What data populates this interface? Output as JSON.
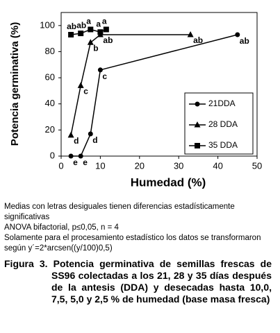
{
  "chart_data": {
    "type": "line",
    "xlabel": "Humedad (%)",
    "ylabel": "Potencia germinativa (%)",
    "xlim": [
      0,
      50
    ],
    "xticks": [
      0,
      10,
      20,
      30,
      40,
      50
    ],
    "ylim": [
      0,
      110
    ],
    "yticks": [
      0,
      20,
      40,
      60,
      80,
      100
    ],
    "series": [
      {
        "name": "21DDA",
        "color": "#000000",
        "marker": "circle",
        "x": [
          2.5,
          5,
          7.5,
          10,
          45
        ],
        "values": [
          0,
          0,
          17,
          66,
          93
        ],
        "point_labels": [
          "e",
          "e",
          "d",
          "c",
          "ab"
        ]
      },
      {
        "name": "28 DDA",
        "color": "#000000",
        "marker": "triangle",
        "x": [
          2.5,
          5,
          7.5,
          10,
          33
        ],
        "values": [
          16,
          54,
          87,
          93,
          93
        ],
        "point_labels": [
          "d",
          "c",
          "b",
          "ab",
          "ab"
        ]
      },
      {
        "name": "35 DDA",
        "color": "#000000",
        "marker": "square",
        "x": [
          2.5,
          5,
          7.5,
          10,
          11.5
        ],
        "values": [
          93,
          94,
          97,
          95,
          97
        ],
        "point_labels": [
          "ab",
          "ab",
          "a",
          "a",
          "a"
        ]
      }
    ]
  },
  "notes": [
    "Medias con letras desiguales tienen diferencias estadísticamente significativas",
    "ANOVA bifactorial, p≤0,05, n = 4",
    "Solamente para el procesamiento estadístico los datos se transformaron según y´=2*arcsen((y/100)0,5)"
  ],
  "caption": {
    "label": "Figura 3.",
    "text": "Potencia germinativa de semillas frescas de SS96 colectadas a los 21, 28 y 35 días después de la antesis (DDA) y desecadas hasta 10,0, 7,5, 5,0 y 2,5 % de humedad (base masa fresca)"
  }
}
